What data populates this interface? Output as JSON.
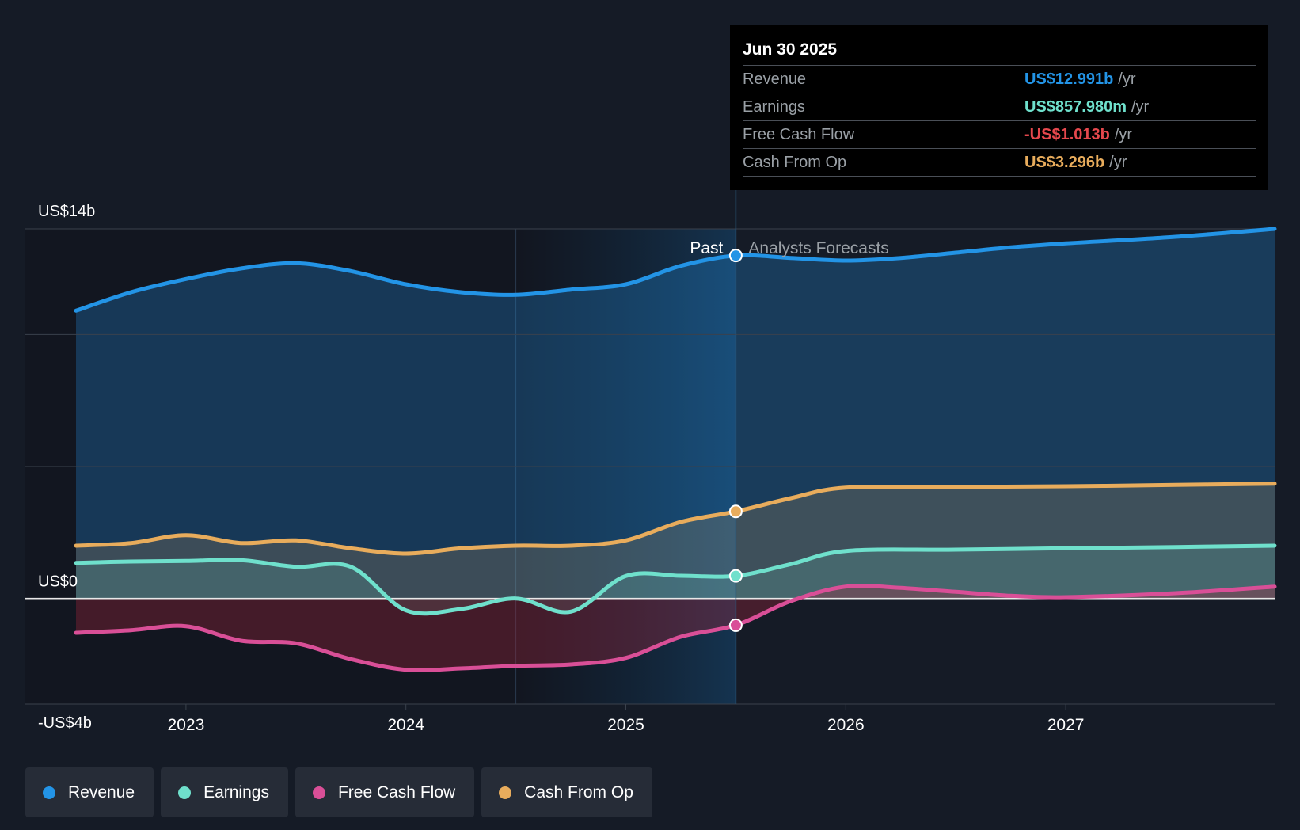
{
  "chart_data": {
    "type": "area",
    "y_unit": "US$ billions",
    "ylim": [
      -4,
      14
    ],
    "y_tick_labels": [
      {
        "value": 14,
        "label": "US$14b"
      },
      {
        "value": 0,
        "label": "US$0"
      },
      {
        "value": -4,
        "label": "-US$4b"
      }
    ],
    "gridlines": [
      14,
      10,
      5,
      0,
      -4
    ],
    "xlim": [
      2022.5,
      2027.95
    ],
    "x_ticks": [
      {
        "value": 2023,
        "label": "2023"
      },
      {
        "value": 2024,
        "label": "2024"
      },
      {
        "value": 2025,
        "label": "2025"
      },
      {
        "value": 2026,
        "label": "2026"
      },
      {
        "value": 2027,
        "label": "2027"
      }
    ],
    "past_label": "Past",
    "forecast_label": "Analysts Forecasts",
    "past_end_x": 2025.5,
    "highlight_start_x": 2024.5,
    "series": [
      {
        "name": "Revenue",
        "color": "#2394e6",
        "fill": true,
        "points": [
          [
            2022.5,
            10.9
          ],
          [
            2022.75,
            11.6
          ],
          [
            2023.0,
            12.1
          ],
          [
            2023.25,
            12.5
          ],
          [
            2023.5,
            12.7
          ],
          [
            2023.75,
            12.4
          ],
          [
            2024.0,
            11.9
          ],
          [
            2024.25,
            11.6
          ],
          [
            2024.5,
            11.5
          ],
          [
            2024.75,
            11.7
          ],
          [
            2025.0,
            11.9
          ],
          [
            2025.25,
            12.6
          ],
          [
            2025.5,
            12.99
          ],
          [
            2025.75,
            12.9
          ],
          [
            2026.0,
            12.8
          ],
          [
            2026.25,
            12.9
          ],
          [
            2026.5,
            13.1
          ],
          [
            2026.75,
            13.3
          ],
          [
            2027.0,
            13.45
          ],
          [
            2027.5,
            13.7
          ],
          [
            2027.95,
            14.0
          ]
        ]
      },
      {
        "name": "Cash From Op",
        "color": "#e8ac5c",
        "fill": true,
        "points": [
          [
            2022.5,
            2.0
          ],
          [
            2022.75,
            2.1
          ],
          [
            2023.0,
            2.4
          ],
          [
            2023.25,
            2.1
          ],
          [
            2023.5,
            2.2
          ],
          [
            2023.75,
            1.9
          ],
          [
            2024.0,
            1.7
          ],
          [
            2024.25,
            1.9
          ],
          [
            2024.5,
            2.0
          ],
          [
            2024.75,
            2.0
          ],
          [
            2025.0,
            2.2
          ],
          [
            2025.25,
            2.9
          ],
          [
            2025.5,
            3.296
          ],
          [
            2025.75,
            3.8
          ],
          [
            2026.0,
            4.2
          ],
          [
            2026.5,
            4.22
          ],
          [
            2027.0,
            4.25
          ],
          [
            2027.5,
            4.3
          ],
          [
            2027.95,
            4.35
          ]
        ]
      },
      {
        "name": "Earnings",
        "color": "#6fe0cc",
        "fill": true,
        "points": [
          [
            2022.5,
            1.35
          ],
          [
            2022.75,
            1.4
          ],
          [
            2023.0,
            1.42
          ],
          [
            2023.25,
            1.45
          ],
          [
            2023.5,
            1.2
          ],
          [
            2023.75,
            1.2
          ],
          [
            2024.0,
            -0.45
          ],
          [
            2024.25,
            -0.4
          ],
          [
            2024.5,
            0.0
          ],
          [
            2024.75,
            -0.5
          ],
          [
            2025.0,
            0.85
          ],
          [
            2025.25,
            0.86
          ],
          [
            2025.5,
            0.858
          ],
          [
            2025.75,
            1.3
          ],
          [
            2026.0,
            1.8
          ],
          [
            2026.5,
            1.85
          ],
          [
            2027.0,
            1.9
          ],
          [
            2027.5,
            1.95
          ],
          [
            2027.95,
            2.0
          ]
        ]
      },
      {
        "name": "Free Cash Flow",
        "color": "#d94f97",
        "fill": true,
        "points": [
          [
            2022.5,
            -1.3
          ],
          [
            2022.75,
            -1.2
          ],
          [
            2023.0,
            -1.05
          ],
          [
            2023.25,
            -1.6
          ],
          [
            2023.5,
            -1.7
          ],
          [
            2023.75,
            -2.3
          ],
          [
            2024.0,
            -2.7
          ],
          [
            2024.25,
            -2.65
          ],
          [
            2024.5,
            -2.55
          ],
          [
            2024.75,
            -2.5
          ],
          [
            2025.0,
            -2.25
          ],
          [
            2025.25,
            -1.45
          ],
          [
            2025.5,
            -1.013
          ],
          [
            2025.75,
            -0.1
          ],
          [
            2026.0,
            0.45
          ],
          [
            2026.25,
            0.4
          ],
          [
            2026.5,
            0.25
          ],
          [
            2026.75,
            0.1
          ],
          [
            2027.0,
            0.05
          ],
          [
            2027.5,
            0.2
          ],
          [
            2027.95,
            0.45
          ]
        ]
      }
    ]
  },
  "tooltip": {
    "date": "Jun 30 2025",
    "rows": [
      {
        "label": "Revenue",
        "value": "US$12.991b",
        "unit": "/yr",
        "color": "#2394e6"
      },
      {
        "label": "Earnings",
        "value": "US$857.980m",
        "unit": "/yr",
        "color": "#6fe0cc"
      },
      {
        "label": "Free Cash Flow",
        "value": "-US$1.013b",
        "unit": "/yr",
        "color": "#e5484d"
      },
      {
        "label": "Cash From Op",
        "value": "US$3.296b",
        "unit": "/yr",
        "color": "#e8ac5c"
      }
    ]
  },
  "legend": [
    {
      "label": "Revenue",
      "color": "#2394e6"
    },
    {
      "label": "Earnings",
      "color": "#6fe0cc"
    },
    {
      "label": "Free Cash Flow",
      "color": "#d94f97"
    },
    {
      "label": "Cash From Op",
      "color": "#e8ac5c"
    }
  ]
}
